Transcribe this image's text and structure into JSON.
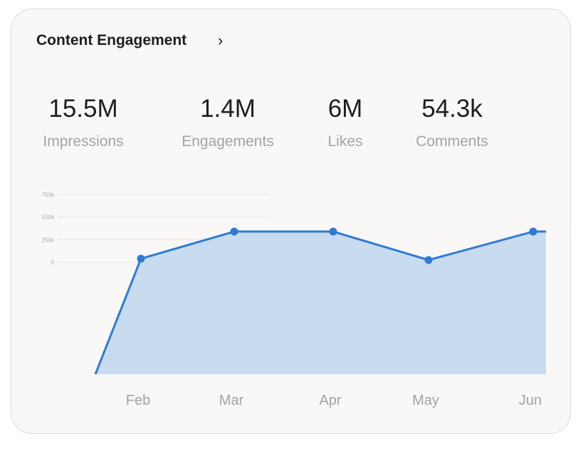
{
  "header": {
    "title": "Content Engagement"
  },
  "stats": [
    {
      "value": "15.5M",
      "label": "Impressions"
    },
    {
      "value": "1.4M",
      "label": "Engagements"
    },
    {
      "value": "6M",
      "label": "Likes"
    },
    {
      "value": "54.3k",
      "label": "Comments"
    }
  ],
  "chart_data": {
    "type": "area",
    "categories": [
      "Feb",
      "Mar",
      "Apr",
      "May",
      "Jun"
    ],
    "values": [
      40000,
      340000,
      340000,
      25000,
      340000
    ],
    "y_ticks": [
      "750k",
      "500k",
      "250k",
      "0"
    ],
    "ylim": [
      0,
      750000
    ],
    "grid": true,
    "color": "#2f7bd4",
    "fill": "#c8dbef"
  }
}
